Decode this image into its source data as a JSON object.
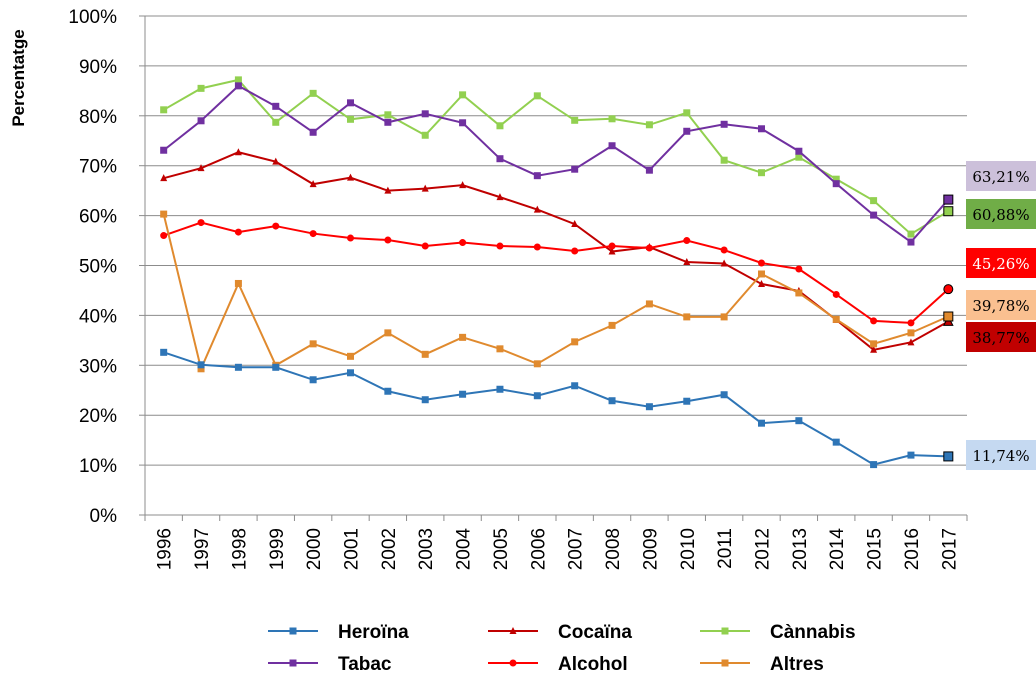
{
  "chart_data": {
    "type": "line",
    "ylabel": "Percentatge",
    "xlabel": "",
    "ylim": [
      0,
      100
    ],
    "y_ticks": [
      "0%",
      "10%",
      "20%",
      "30%",
      "40%",
      "50%",
      "60%",
      "70%",
      "80%",
      "90%",
      "100%"
    ],
    "categories": [
      "1996",
      "1997",
      "1998",
      "1999",
      "2000",
      "2001",
      "2002",
      "2003",
      "2004",
      "2005",
      "2006",
      "2007",
      "2008",
      "2009",
      "2010",
      "2011",
      "2012",
      "2013",
      "2014",
      "2015",
      "2016",
      "2017"
    ],
    "grid": "horizontal",
    "legend_position": "bottom",
    "series": [
      {
        "name": "Heroïna",
        "color": "#2E75B6",
        "marker": "square",
        "values": [
          32.6,
          30.1,
          29.6,
          29.6,
          27.1,
          28.5,
          24.8,
          23.1,
          24.2,
          25.2,
          23.9,
          25.9,
          22.9,
          21.7,
          22.8,
          24.1,
          18.4,
          18.9,
          14.6,
          10.1,
          12.0,
          11.74
        ],
        "end_label": "11,74%",
        "end_label_bg": "#C5D9F1",
        "end_label_color": "#000000"
      },
      {
        "name": "Cocaïna",
        "color": "#C00000",
        "marker": "triangle",
        "values": [
          67.5,
          69.5,
          72.7,
          70.8,
          66.3,
          67.6,
          65.0,
          65.4,
          66.1,
          63.7,
          61.2,
          58.3,
          52.8,
          53.7,
          50.7,
          50.4,
          46.3,
          44.9,
          39.1,
          33.1,
          34.6,
          38.77
        ],
        "end_label": "38,77%",
        "end_label_bg": "#C00000",
        "end_label_color": "#000000"
      },
      {
        "name": "Cànnabis",
        "color": "#92D050",
        "marker": "square",
        "values": [
          81.2,
          85.5,
          87.2,
          78.7,
          84.5,
          79.3,
          80.2,
          76.1,
          84.2,
          78.0,
          84.0,
          79.1,
          79.4,
          78.2,
          80.6,
          71.1,
          68.6,
          71.7,
          67.3,
          63.0,
          56.3,
          60.88
        ],
        "end_label": "60,88%",
        "end_label_bg": "#70AD47",
        "end_label_color": "#000000"
      },
      {
        "name": "Tabac",
        "color": "#7030A0",
        "marker": "square",
        "values": [
          73.1,
          79.0,
          86.0,
          81.9,
          76.7,
          82.6,
          78.7,
          80.4,
          78.6,
          71.4,
          68.0,
          69.3,
          74.0,
          69.1,
          76.9,
          78.3,
          77.4,
          72.9,
          66.4,
          60.1,
          54.7,
          63.21
        ],
        "end_label": "63,21%",
        "end_label_bg": "#CCC0DA",
        "end_label_color": "#000000"
      },
      {
        "name": "Alcohol",
        "color": "#FF0000",
        "marker": "circle",
        "values": [
          56.0,
          58.6,
          56.7,
          57.9,
          56.4,
          55.5,
          55.1,
          53.9,
          54.6,
          53.9,
          53.7,
          52.9,
          53.9,
          53.5,
          55.0,
          53.1,
          50.5,
          49.3,
          44.2,
          38.9,
          38.5,
          45.26
        ],
        "end_label": "45,26%",
        "end_label_bg": "#FF0000",
        "end_label_color": "#FFFFFF"
      },
      {
        "name": "Altres",
        "color": "#E08A2E",
        "marker": "square",
        "values": [
          60.3,
          29.3,
          46.4,
          30.0,
          34.3,
          31.8,
          36.5,
          32.2,
          35.6,
          33.3,
          30.3,
          34.7,
          38.0,
          42.3,
          39.7,
          39.7,
          48.3,
          44.5,
          39.2,
          34.3,
          36.5,
          39.78
        ],
        "end_label": "39,78%",
        "end_label_bg": "#FAC090",
        "end_label_color": "#000000"
      }
    ]
  }
}
